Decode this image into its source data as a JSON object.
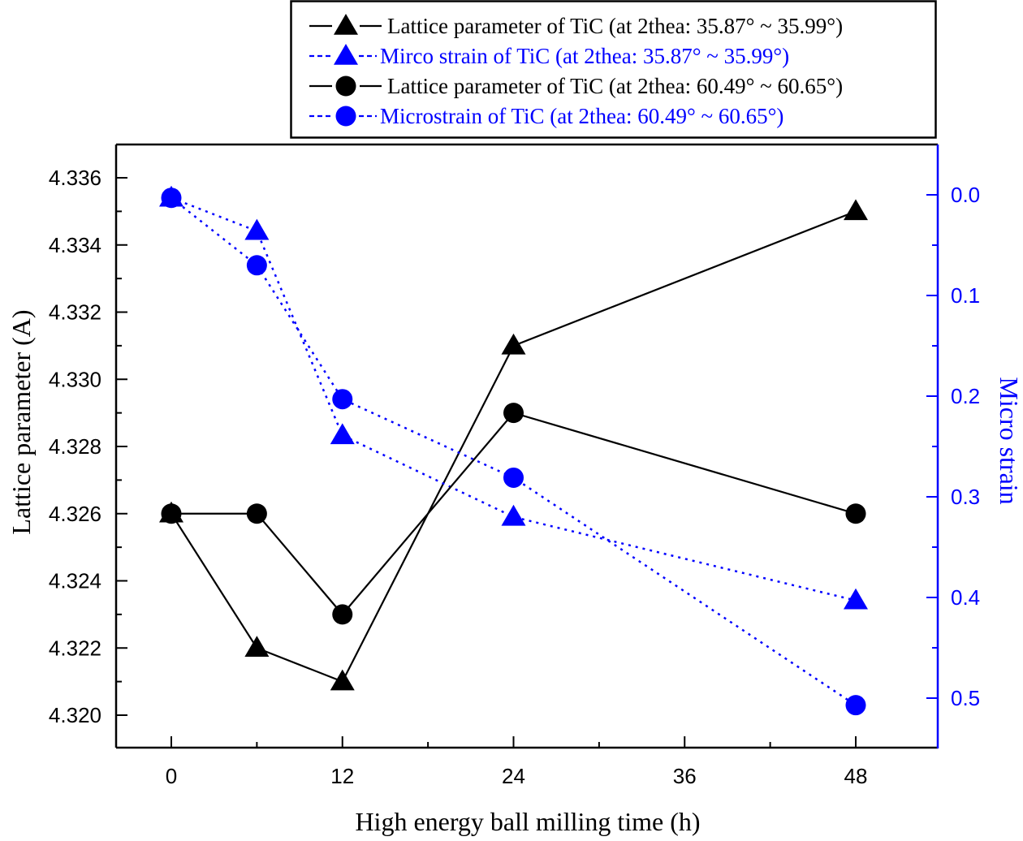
{
  "chart_data": {
    "type": "line",
    "title": "",
    "xlabel": "High energy ball milling time (h)",
    "ylabel": "Lattice parameter (A)",
    "y2label": "Micro strain",
    "x": [
      0,
      6,
      12,
      24,
      48
    ],
    "xlim": [
      -4,
      54.5
    ],
    "xticks": [
      0,
      12,
      24,
      36,
      48
    ],
    "xtick_labels": [
      "0",
      "12",
      "24",
      "36",
      "48"
    ],
    "x_minor_ticks": [
      6,
      18,
      30,
      42
    ],
    "ylim": [
      4.3191,
      4.3369
    ],
    "yticks": [
      4.32,
      4.322,
      4.324,
      4.326,
      4.328,
      4.33,
      4.332,
      4.334,
      4.336
    ],
    "ytick_labels": [
      "4.320",
      "4.322",
      "4.324",
      "4.326",
      "4.328",
      "4.330",
      "4.332",
      "4.334",
      "4.336"
    ],
    "y_minor_ticks": [
      4.321,
      4.323,
      4.325,
      4.327,
      4.329,
      4.331,
      4.333,
      4.335
    ],
    "y2lim": [
      -0.05,
      0.55
    ],
    "y2_inverted": true,
    "y2ticks": [
      0.0,
      0.1,
      0.2,
      0.3,
      0.4,
      0.5
    ],
    "y2tick_labels": [
      "0.0",
      "0.1",
      "0.2",
      "0.3",
      "0.4",
      "0.5"
    ],
    "y2_minor_ticks": [
      0.05,
      0.15,
      0.25,
      0.35,
      0.45
    ],
    "grid": false,
    "legend_position": "top-center (above plot)",
    "series": [
      {
        "name": "Lattice parameter of TiC (at 2thea: 35.87° ~ 35.99°)",
        "axis": "left",
        "marker": "triangle",
        "line": "solid",
        "color": "#000000",
        "values": [
          4.326,
          4.322,
          4.321,
          4.331,
          4.335
        ]
      },
      {
        "name": "Mirco strain of TiC (at 2thea: 35.87° ~ 35.99°)",
        "axis": "right",
        "marker": "triangle",
        "line": "dotted",
        "color": "#0000ff",
        "values": [
          0.003,
          0.036,
          0.239,
          0.32,
          0.403
        ]
      },
      {
        "name": "Lattice parameter of TiC (at 2thea: 60.49° ~ 60.65°)",
        "axis": "left",
        "marker": "circle",
        "line": "solid",
        "color": "#000000",
        "values": [
          4.326,
          4.326,
          4.323,
          4.329,
          4.326
        ]
      },
      {
        "name": "Microstrain of TiC (at 2thea: 60.49° ~ 60.65°)",
        "axis": "right",
        "marker": "circle",
        "line": "dotted",
        "color": "#0000ff",
        "values": [
          0.003,
          0.07,
          0.203,
          0.281,
          0.507
        ]
      }
    ]
  },
  "colors": {
    "left_axis": "#000000",
    "right_axis": "#0000ff"
  }
}
